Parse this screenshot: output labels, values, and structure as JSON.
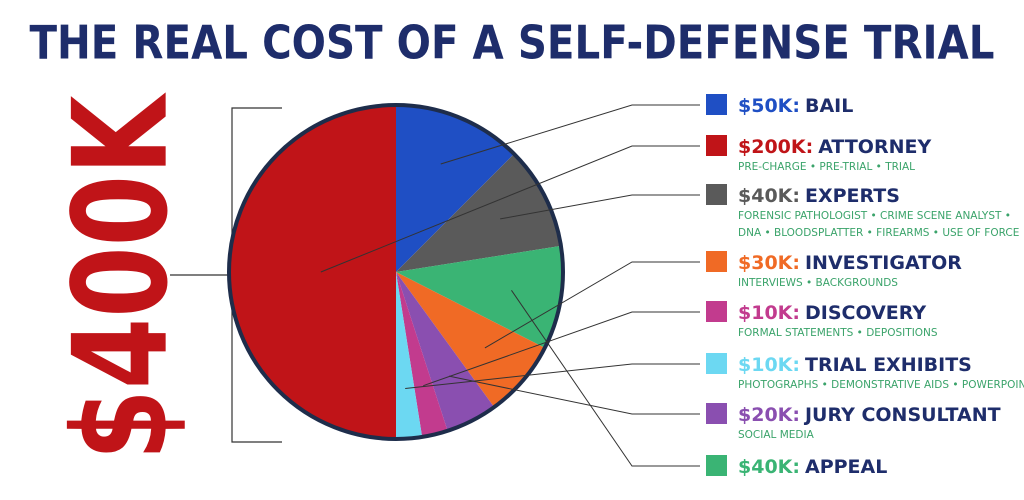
{
  "chart_data": {
    "type": "pie",
    "title": "THE REAL COST OF A SELF-DEFENSE TRIAL",
    "total": 400,
    "total_label": "$400K",
    "categories": [
      "BAIL",
      "EXPERTS",
      "APPEAL",
      "INVESTIGATOR",
      "JURY CONSULTANT",
      "DISCOVERY",
      "TRIAL EXHIBITS",
      "ATTORNEY"
    ],
    "values": [
      50,
      40,
      40,
      30,
      20,
      10,
      10,
      200
    ],
    "value_labels": [
      "$50K:",
      "$40K:",
      "$40K:",
      "$30K:",
      "$20K:",
      "$10K:",
      "$10K:",
      "$200K:"
    ],
    "colors": [
      "#1f4fc4",
      "#5a5a5a",
      "#3ab474",
      "#f06a25",
      "#8a4fb0",
      "#c23b8e",
      "#6cd8f2",
      "#c01418"
    ],
    "notes": [
      [],
      [
        "FORENSIC PATHOLOGIST • CRIME SCENE ANALYST •",
        "DNA • BLOODSPLATTER • FIREARMS • USE OF FORCE"
      ],
      [],
      [
        "INTERVIEWS • BACKGROUNDS"
      ],
      [
        "SOCIAL MEDIA"
      ],
      [
        "FORMAL STATEMENTS • DEPOSITIONS"
      ],
      [
        "PHOTOGRAPHS • DEMONSTRATIVE AIDS • POWERPOINT"
      ],
      [
        "PRE-CHARGE • PRE-TRIAL • TRIAL"
      ]
    ]
  }
}
